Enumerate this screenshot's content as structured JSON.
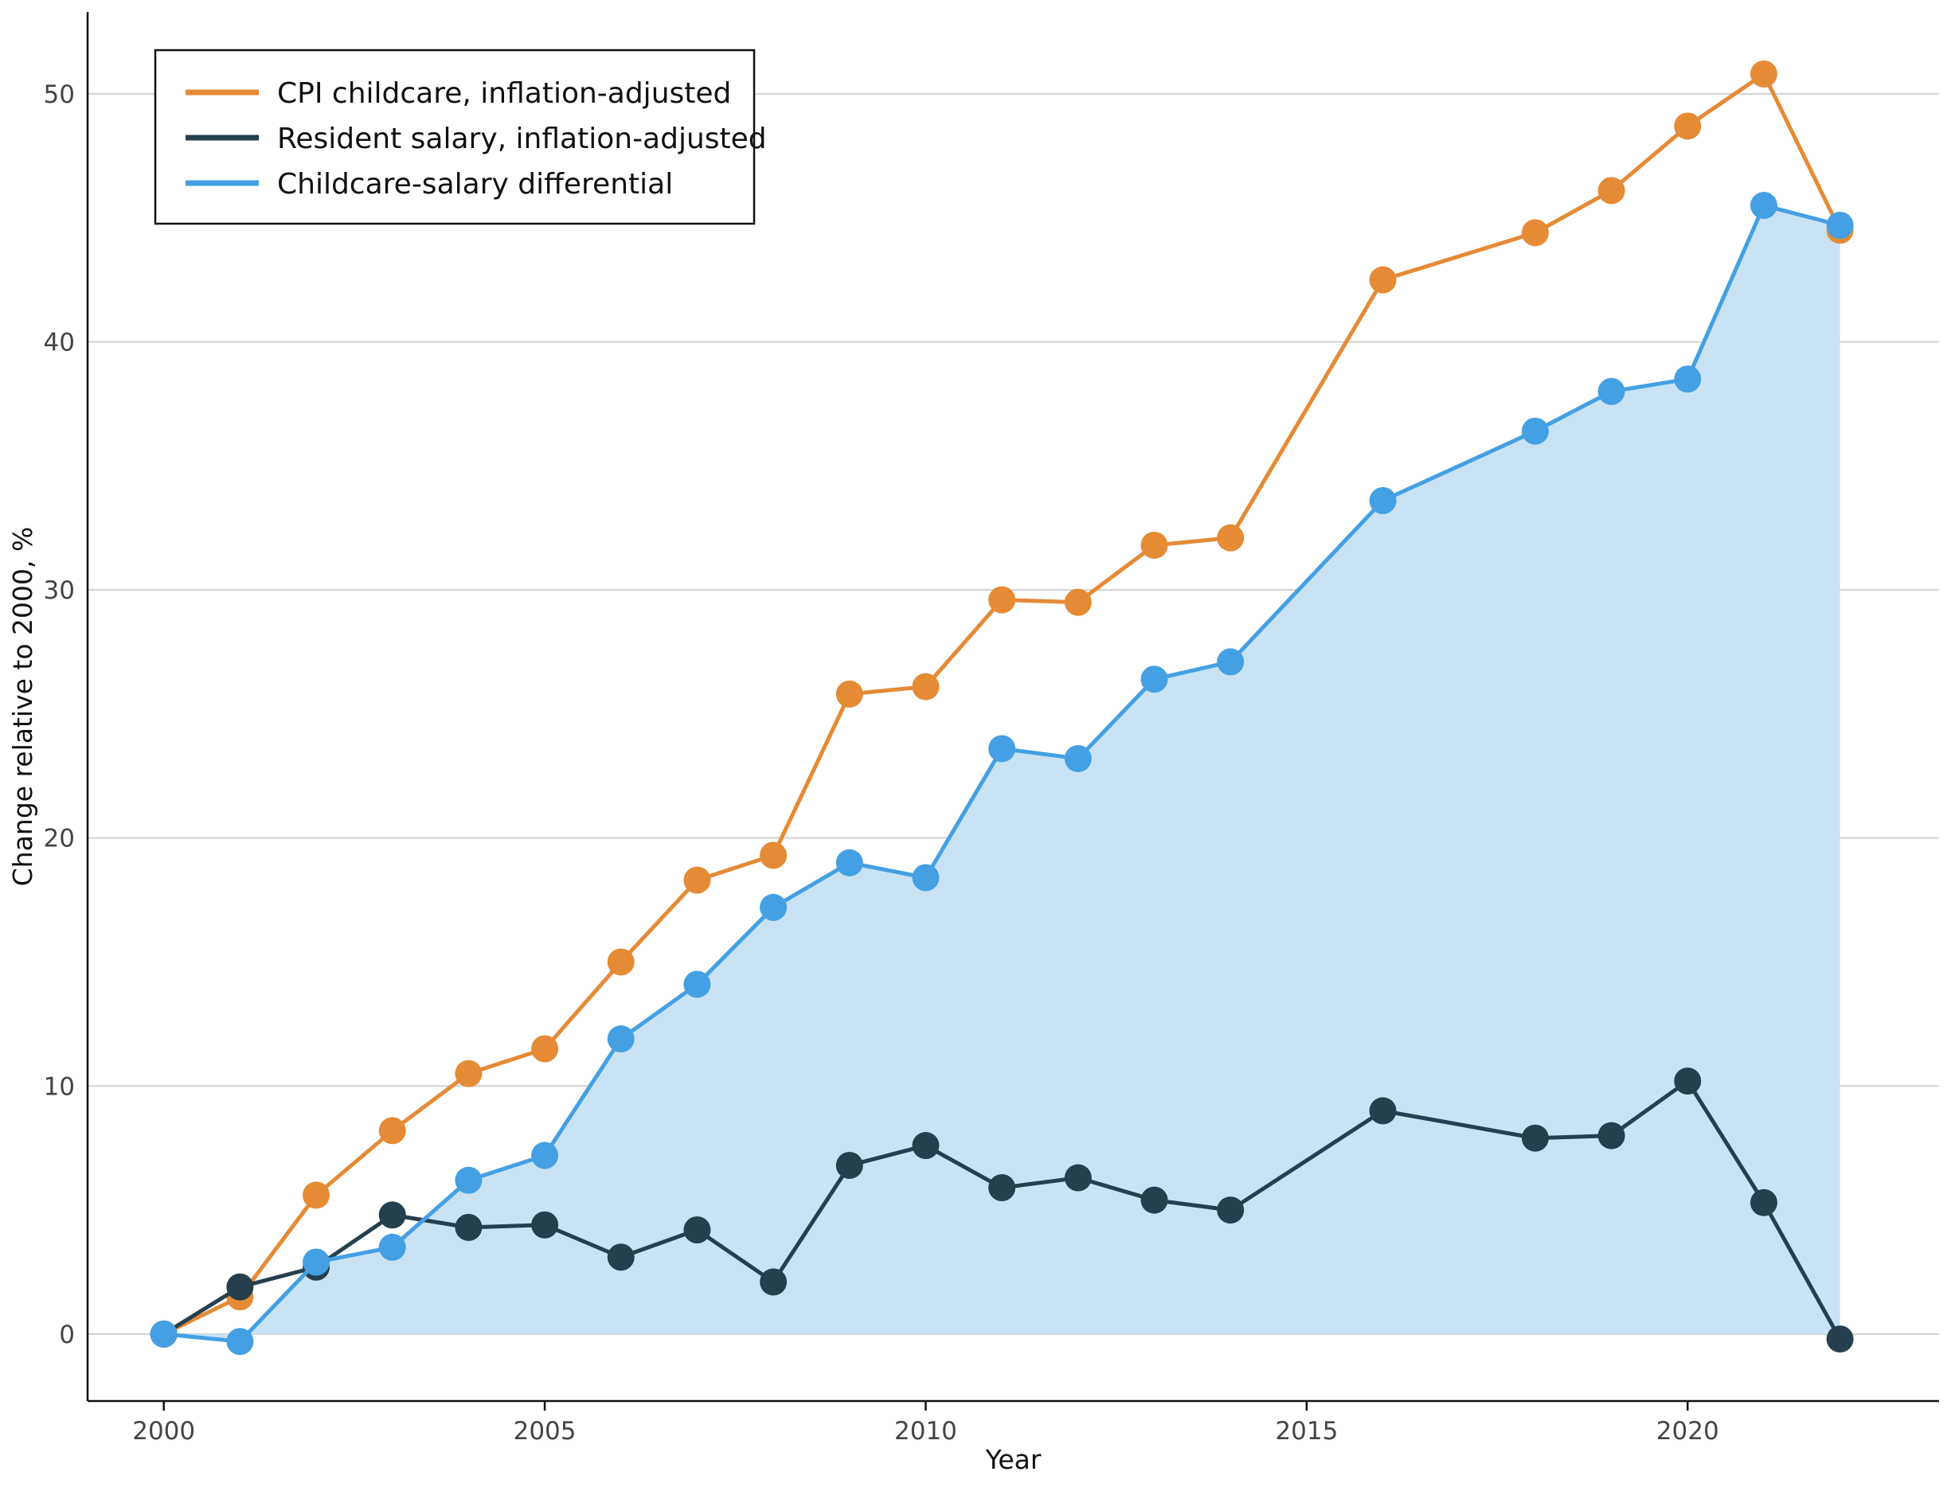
{
  "chart_data": {
    "type": "line",
    "xlabel": "Year",
    "ylabel": "Change relative to 2000, %",
    "xlim": [
      1999,
      2023.3
    ],
    "ylim": [
      -2.7,
      53.3
    ],
    "x_ticks": [
      2000,
      2005,
      2010,
      2015,
      2020
    ],
    "y_ticks": [
      0,
      10,
      20,
      30,
      40,
      50
    ],
    "grid": "horizontal",
    "legend_position": "top-left",
    "series": [
      {
        "name": "CPI childcare, inflation-adjusted",
        "color": "#E58A35",
        "x": [
          2000,
          2001,
          2002,
          2003,
          2004,
          2005,
          2006,
          2007,
          2008,
          2009,
          2010,
          2011,
          2012,
          2013,
          2014,
          2016,
          2018,
          2019,
          2020,
          2021,
          2022
        ],
        "y": [
          0,
          1.5,
          5.6,
          8.2,
          10.5,
          11.5,
          15.0,
          18.3,
          19.3,
          25.8,
          26.1,
          29.6,
          29.5,
          31.8,
          32.1,
          42.5,
          44.4,
          46.1,
          48.7,
          50.8,
          44.5
        ]
      },
      {
        "name": "Resident salary, inflation-adjusted",
        "color": "#263F4D",
        "x": [
          2000,
          2001,
          2002,
          2003,
          2004,
          2005,
          2006,
          2007,
          2008,
          2009,
          2010,
          2011,
          2012,
          2013,
          2014,
          2016,
          2018,
          2019,
          2020,
          2021,
          2022
        ],
        "y": [
          0,
          1.9,
          2.7,
          4.8,
          4.3,
          4.4,
          3.1,
          4.2,
          2.1,
          6.8,
          7.6,
          5.9,
          6.3,
          5.4,
          5.0,
          9.0,
          7.9,
          8.0,
          10.2,
          5.3,
          -0.2
        ]
      },
      {
        "name": "Childcare-salary differential",
        "color": "#44A0E3",
        "fill": "#C9E3F5",
        "x": [
          2000,
          2001,
          2002,
          2003,
          2004,
          2005,
          2006,
          2007,
          2008,
          2009,
          2010,
          2011,
          2012,
          2013,
          2014,
          2016,
          2018,
          2019,
          2020,
          2021,
          2022
        ],
        "y": [
          0,
          -0.3,
          2.9,
          3.5,
          6.2,
          7.2,
          11.9,
          14.1,
          17.2,
          19.0,
          18.4,
          23.6,
          23.2,
          26.4,
          27.1,
          33.6,
          36.4,
          38.0,
          38.5,
          45.5,
          44.7
        ]
      }
    ]
  }
}
